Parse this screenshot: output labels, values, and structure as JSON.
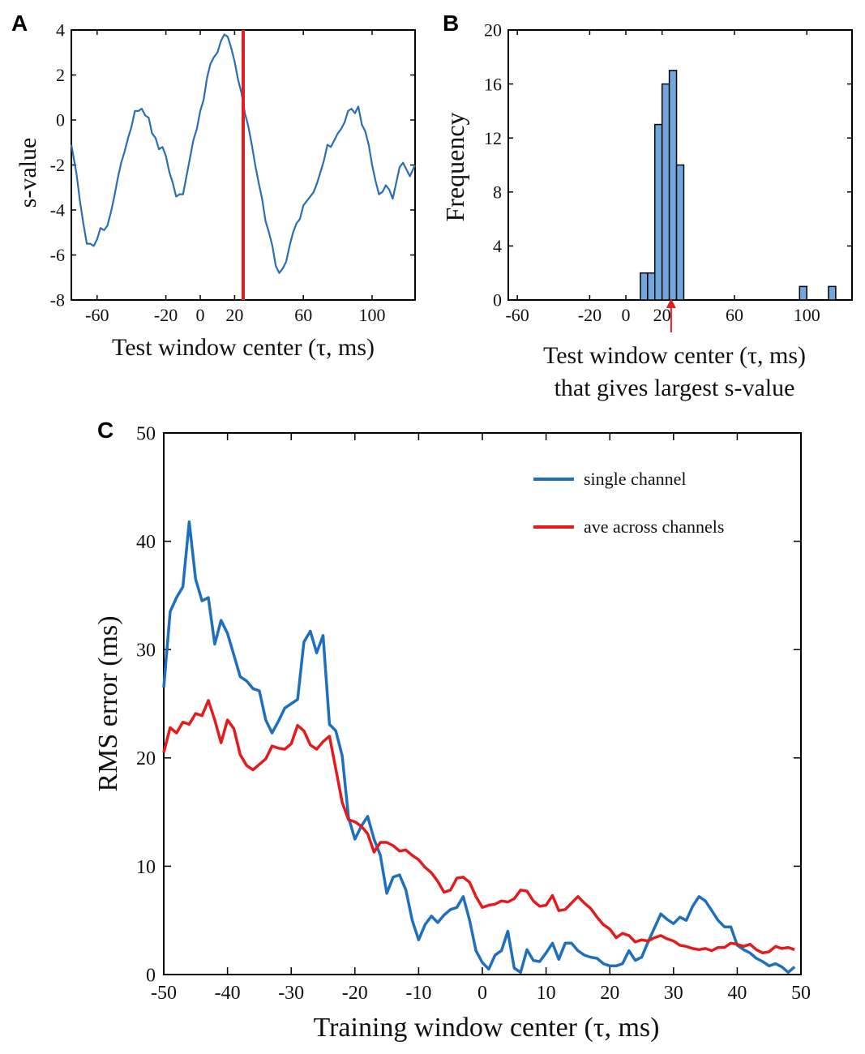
{
  "chart_data": [
    {
      "id": "A",
      "panel_label": "A",
      "type": "line",
      "xlabel": "Test window center (τ, ms)",
      "ylabel": "s-value",
      "xlim": [
        -75,
        125
      ],
      "ylim": [
        -8,
        4
      ],
      "xticks": [
        -60,
        -20,
        0,
        20,
        60,
        100
      ],
      "xtick_labels": [
        "-60",
        "-20",
        "0",
        "20",
        "60",
        "100"
      ],
      "yticks": [
        -8,
        -6,
        -4,
        -2,
        0,
        2,
        4
      ],
      "ytick_labels": [
        "-8",
        "-6",
        "-4",
        "-2",
        "0",
        "2",
        "4"
      ],
      "series": [
        {
          "name": "s-value",
          "color": "#2a6fb5",
          "x": [
            -75,
            -72,
            -70,
            -68,
            -66,
            -64,
            -62,
            -60,
            -58,
            -56,
            -54,
            -52,
            -50,
            -48,
            -46,
            -44,
            -42,
            -40,
            -38,
            -36,
            -34,
            -32,
            -30,
            -28,
            -26,
            -24,
            -22,
            -20,
            -18,
            -16,
            -14,
            -12,
            -10,
            -8,
            -6,
            -4,
            -2,
            0,
            2,
            4,
            6,
            8,
            10,
            12,
            14,
            16,
            18,
            20,
            22,
            24,
            26,
            28,
            30,
            32,
            34,
            36,
            38,
            40,
            42,
            44,
            46,
            48,
            50,
            52,
            54,
            56,
            58,
            60,
            62,
            64,
            66,
            68,
            70,
            72,
            74,
            76,
            78,
            80,
            82,
            84,
            86,
            88,
            90,
            92,
            94,
            96,
            98,
            100,
            102,
            104,
            106,
            108,
            110,
            112,
            114,
            116,
            118,
            120,
            122,
            125
          ],
          "y": [
            -1.1,
            -2.4,
            -3.6,
            -4.6,
            -5.5,
            -5.5,
            -5.6,
            -5.3,
            -4.8,
            -4.9,
            -4.7,
            -4.1,
            -3.4,
            -2.6,
            -1.9,
            -1.4,
            -0.8,
            -0.3,
            0.4,
            0.4,
            0.5,
            0.2,
            0.1,
            -0.6,
            -0.8,
            -1.3,
            -1.2,
            -1.6,
            -2.3,
            -2.8,
            -3.4,
            -3.3,
            -3.3,
            -2.5,
            -1.7,
            -0.9,
            -0.4,
            0.4,
            0.9,
            1.9,
            2.5,
            2.8,
            3.0,
            3.5,
            3.8,
            3.7,
            3.2,
            2.6,
            1.8,
            1.2,
            0.3,
            -0.3,
            -1.1,
            -2.0,
            -2.8,
            -3.5,
            -4.5,
            -5.0,
            -5.6,
            -6.5,
            -6.8,
            -6.6,
            -6.3,
            -5.6,
            -5.0,
            -4.6,
            -4.4,
            -3.8,
            -3.6,
            -3.4,
            -3.2,
            -2.8,
            -2.3,
            -1.8,
            -1.1,
            -1.2,
            -0.9,
            -0.6,
            -0.4,
            -0.1,
            0.4,
            0.5,
            0.3,
            0.6,
            -0.2,
            -0.5,
            -1.1,
            -2.0,
            -2.7,
            -3.3,
            -3.2,
            -2.9,
            -3.1,
            -3.5,
            -2.8,
            -2.1,
            -1.9,
            -2.2,
            -2.5,
            -2.0
          ]
        }
      ],
      "marker_line": {
        "x": 25,
        "color": "#e02020"
      }
    },
    {
      "id": "B",
      "panel_label": "B",
      "type": "bar",
      "xlabel": "Test window center (τ, ms)",
      "xlabel2": "that gives largest s-value",
      "ylabel": "Frequency",
      "xlim": [
        -65,
        125
      ],
      "ylim": [
        0,
        20
      ],
      "xticks": [
        -60,
        -20,
        0,
        20,
        60,
        100
      ],
      "xtick_labels": [
        "-60",
        "-20",
        "0",
        "20",
        "60",
        "100"
      ],
      "yticks": [
        0,
        4,
        8,
        12,
        16,
        20
      ],
      "ytick_labels": [
        "0",
        "4",
        "8",
        "12",
        "16",
        "20"
      ],
      "bin_width": 4,
      "bin_starts": [
        8,
        12,
        16,
        20,
        24,
        28,
        96,
        112
      ],
      "counts": [
        2,
        2,
        13,
        16,
        17,
        10,
        1,
        1
      ],
      "bar_color": "#6fa8dc",
      "arrow": {
        "x": 25,
        "color": "#e02020"
      }
    },
    {
      "id": "C",
      "panel_label": "C",
      "type": "line",
      "xlabel": "Training window center (τ, ms)",
      "ylabel": "RMS error (ms)",
      "xlim": [
        -50,
        50
      ],
      "ylim": [
        0,
        50
      ],
      "xticks": [
        -50,
        -40,
        -30,
        -20,
        -10,
        0,
        10,
        20,
        30,
        40,
        50
      ],
      "xtick_labels": [
        "-50",
        "-40",
        "-30",
        "-20",
        "-10",
        "0",
        "10",
        "20",
        "30",
        "40",
        "50"
      ],
      "yticks": [
        0,
        10,
        20,
        30,
        40,
        50
      ],
      "ytick_labels": [
        "0",
        "10",
        "20",
        "30",
        "40",
        "50"
      ],
      "legend": {
        "position": "top-right"
      },
      "series": [
        {
          "name": "single channel",
          "color": "#1f6fbf",
          "x": [
            -50,
            -49,
            -48,
            -47,
            -46,
            -45,
            -44,
            -43,
            -42,
            -41,
            -40,
            -39,
            -38,
            -37,
            -36,
            -35,
            -34,
            -33,
            -32,
            -31,
            -30,
            -29,
            -28,
            -27,
            -26,
            -25,
            -24,
            -23,
            -22,
            -21,
            -20,
            -19,
            -18,
            -17,
            -16,
            -15,
            -14,
            -13,
            -12,
            -11,
            -10,
            -9,
            -8,
            -7,
            -6,
            -5,
            -4,
            -3,
            -2,
            -1,
            0,
            1,
            2,
            3,
            4,
            5,
            6,
            7,
            8,
            9,
            10,
            11,
            12,
            13,
            14,
            15,
            16,
            17,
            18,
            19,
            20,
            21,
            22,
            23,
            24,
            25,
            26,
            27,
            28,
            29,
            30,
            31,
            32,
            33,
            34,
            35,
            36,
            37,
            38,
            39,
            40,
            41,
            42,
            43,
            44,
            45,
            46,
            47,
            48,
            49
          ],
          "y": [
            26.5,
            33.5,
            34.8,
            35.8,
            41.8,
            36.5,
            34.5,
            34.8,
            30.5,
            32.7,
            31.5,
            29.5,
            27.5,
            27.1,
            26.4,
            26.2,
            23.5,
            22.3,
            23.4,
            24.6,
            25.0,
            25.4,
            30.7,
            31.7,
            29.7,
            31.3,
            23.1,
            22.5,
            20.2,
            14.5,
            12.5,
            13.7,
            14.6,
            12.5,
            11.0,
            7.5,
            9.0,
            9.2,
            7.8,
            5.0,
            3.2,
            4.6,
            5.4,
            4.8,
            5.5,
            6.0,
            6.2,
            7.2,
            5.0,
            2.2,
            1.1,
            0.5,
            1.8,
            2.2,
            4.0,
            0.6,
            0.2,
            2.3,
            1.3,
            1.2,
            2.0,
            2.9,
            1.4,
            2.9,
            2.9,
            2.2,
            1.8,
            1.6,
            1.5,
            1.0,
            0.8,
            0.8,
            1.0,
            2.2,
            1.3,
            1.6,
            3.0,
            4.3,
            5.6,
            5.1,
            4.7,
            5.3,
            5.0,
            6.3,
            7.2,
            6.8,
            5.9,
            5.0,
            4.4,
            4.4,
            2.7,
            2.3,
            2.0,
            1.5,
            1.2,
            0.8,
            1.0,
            0.7,
            0.2,
            0.7
          ]
        },
        {
          "name": "ave across channels",
          "color": "#e41a1c",
          "x": [
            -50,
            -49,
            -48,
            -47,
            -46,
            -45,
            -44,
            -43,
            -42,
            -41,
            -40,
            -39,
            -38,
            -37,
            -36,
            -35,
            -34,
            -33,
            -32,
            -31,
            -30,
            -29,
            -28,
            -27,
            -26,
            -25,
            -24,
            -23,
            -22,
            -21,
            -20,
            -19,
            -18,
            -17,
            -16,
            -15,
            -14,
            -13,
            -12,
            -11,
            -10,
            -9,
            -8,
            -7,
            -6,
            -5,
            -4,
            -3,
            -2,
            -1,
            0,
            1,
            2,
            3,
            4,
            5,
            6,
            7,
            8,
            9,
            10,
            11,
            12,
            13,
            14,
            15,
            16,
            17,
            18,
            19,
            20,
            21,
            22,
            23,
            24,
            25,
            26,
            27,
            28,
            29,
            30,
            31,
            32,
            33,
            34,
            35,
            36,
            37,
            38,
            39,
            40,
            41,
            42,
            43,
            44,
            45,
            46,
            47,
            48,
            49
          ],
          "y": [
            20.5,
            22.8,
            22.3,
            23.3,
            23.1,
            24.1,
            23.9,
            25.3,
            23.5,
            21.4,
            23.5,
            22.7,
            20.3,
            19.3,
            18.9,
            19.4,
            19.9,
            21.1,
            20.9,
            20.8,
            21.3,
            23.0,
            22.5,
            21.2,
            20.8,
            21.5,
            22.0,
            19.0,
            15.9,
            14.3,
            14.1,
            13.7,
            13.0,
            11.3,
            12.2,
            12.2,
            11.9,
            11.4,
            11.5,
            11.0,
            10.6,
            9.9,
            9.4,
            8.6,
            7.6,
            7.8,
            8.9,
            9.0,
            8.5,
            7.2,
            6.2,
            6.4,
            6.5,
            6.8,
            6.7,
            7.0,
            7.8,
            7.7,
            6.8,
            6.3,
            6.4,
            7.3,
            5.9,
            6.0,
            6.6,
            7.2,
            6.6,
            6.1,
            5.3,
            4.6,
            4.2,
            3.4,
            3.8,
            3.6,
            3.0,
            3.2,
            3.1,
            3.4,
            3.6,
            3.3,
            3.1,
            2.7,
            2.6,
            2.4,
            2.3,
            2.4,
            2.2,
            2.5,
            2.5,
            2.9,
            2.8,
            2.6,
            2.8,
            2.3,
            2.0,
            2.1,
            2.6,
            2.4,
            2.5,
            2.3
          ]
        }
      ]
    }
  ]
}
